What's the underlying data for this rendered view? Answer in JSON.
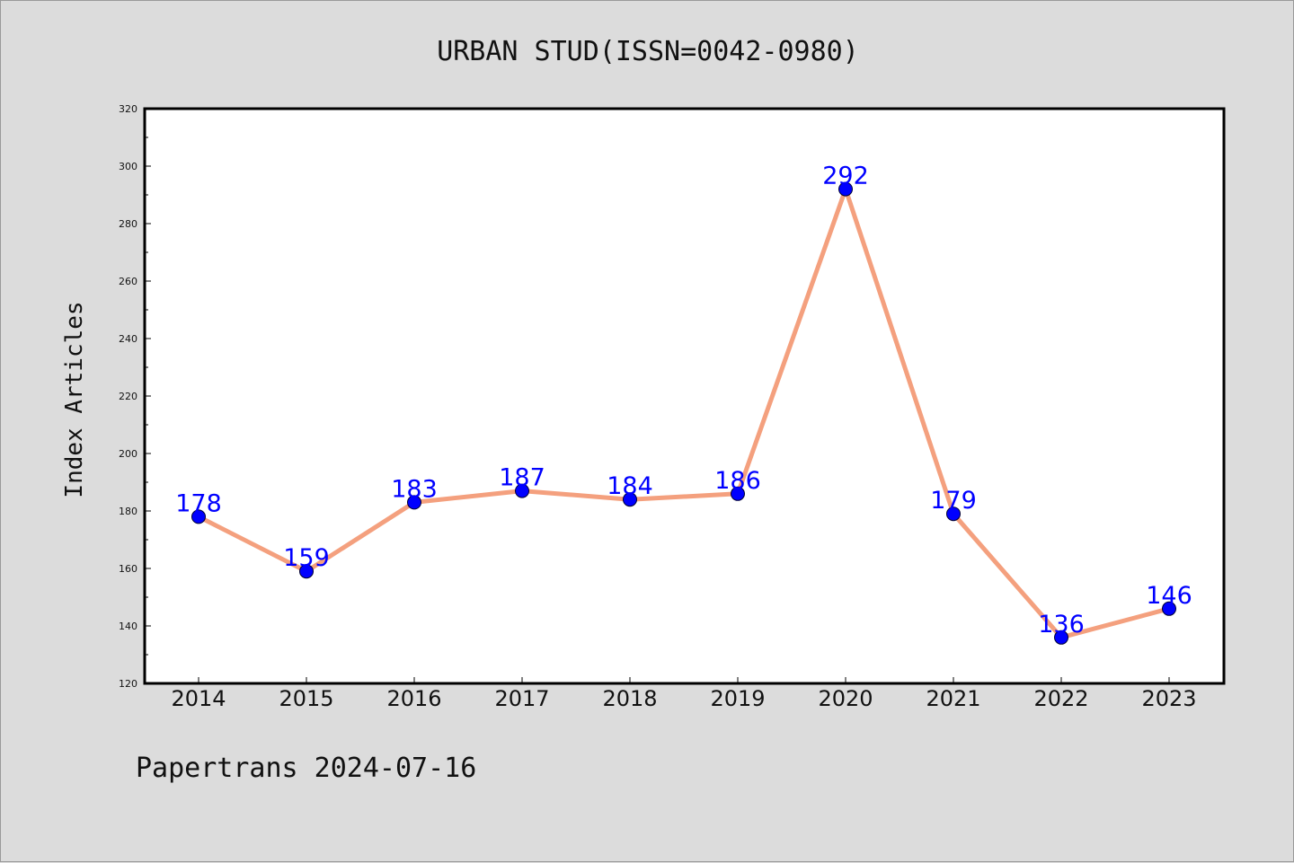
{
  "chart_data": {
    "type": "line",
    "title": "URBAN STUD(ISSN=0042-0980)",
    "ylabel": "Index Articles",
    "xlabel": "",
    "categories": [
      "2014",
      "2015",
      "2016",
      "2017",
      "2018",
      "2019",
      "2020",
      "2021",
      "2022",
      "2023"
    ],
    "values": [
      178,
      159,
      183,
      187,
      184,
      186,
      292,
      179,
      136,
      146
    ],
    "ylim": [
      120,
      320
    ],
    "yticks": [
      120,
      140,
      160,
      180,
      200,
      220,
      240,
      260,
      280,
      300,
      320
    ],
    "grid": false,
    "line_color": "#f4a07e",
    "marker_color": "#0000ff",
    "label_color": "#0000ff"
  },
  "footer": "Papertrans 2024-07-16"
}
